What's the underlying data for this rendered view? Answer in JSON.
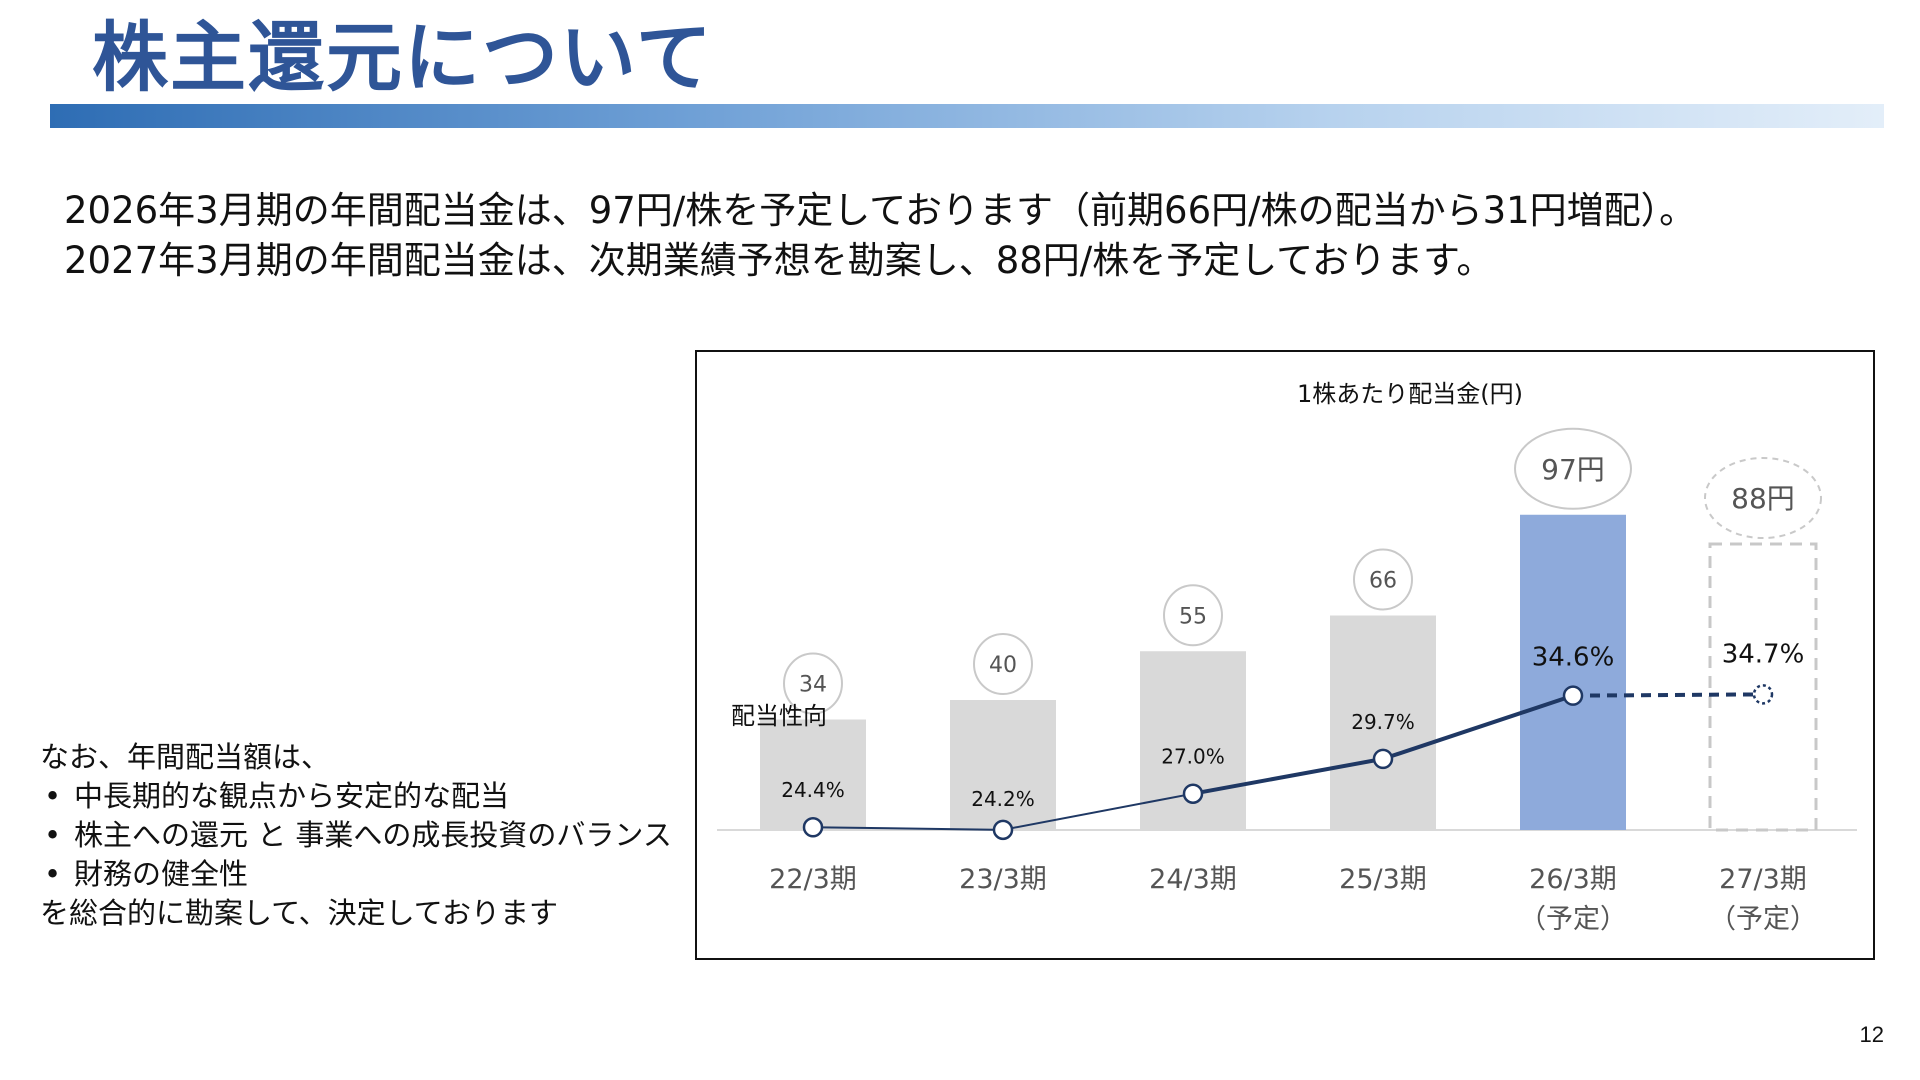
{
  "page": {
    "title": "株主還元について",
    "intro_lines": [
      "2026年3月期の年間配当金は、97円/株を予定しております（前期66円/株の配当から31円増配）。",
      "2027年3月期の年間配当金は、次期業績予想を勘案し、88円/株を予定しております。"
    ],
    "note": {
      "lead": "なお、年間配当額は、",
      "bullets": [
        "中長期的な観点から安定的な配当",
        "株主への還元 と 事業への成長投資のバランス",
        "財務の健全性"
      ],
      "tail": "を総合的に勘案して、決定しております"
    },
    "page_number": "12"
  },
  "chart_data": {
    "type": "bar",
    "title": "1株あたり配当金(円)",
    "categories": [
      "22/3期",
      "23/3期",
      "24/3期",
      "25/3期",
      "26/3期",
      "27/3期"
    ],
    "category_sublabels": [
      "",
      "",
      "",
      "",
      "（予定）",
      "（予定）"
    ],
    "series": [
      {
        "name": "1株あたり配当金(円)",
        "values": [
          34,
          40,
          55,
          66,
          97,
          88
        ],
        "value_labels": [
          "34",
          "40",
          "55",
          "66",
          "97円",
          "88円"
        ],
        "style": [
          "actual",
          "actual",
          "actual",
          "actual",
          "forecast-filled",
          "forecast-dashed"
        ]
      },
      {
        "name": "配当性向",
        "values": [
          24.4,
          24.2,
          27.0,
          29.7,
          34.6,
          34.7
        ],
        "value_labels": [
          "24.4%",
          "24.2%",
          "27.0%",
          "29.7%",
          "34.6%",
          "34.7%"
        ],
        "style": [
          "solid",
          "solid",
          "solid",
          "solid",
          "solid",
          "dashed"
        ]
      }
    ],
    "payout_ratio_label": "配当性向",
    "colors": {
      "bar_actual": "#d9d9d9",
      "bar_forecast": "#8eaadb",
      "bar_forecast_dashed_border": "#c8c8c8",
      "line": "#1f3864",
      "bubble_border": "#c9c9c9",
      "axis": "#d9d9d9"
    },
    "grid": false
  }
}
